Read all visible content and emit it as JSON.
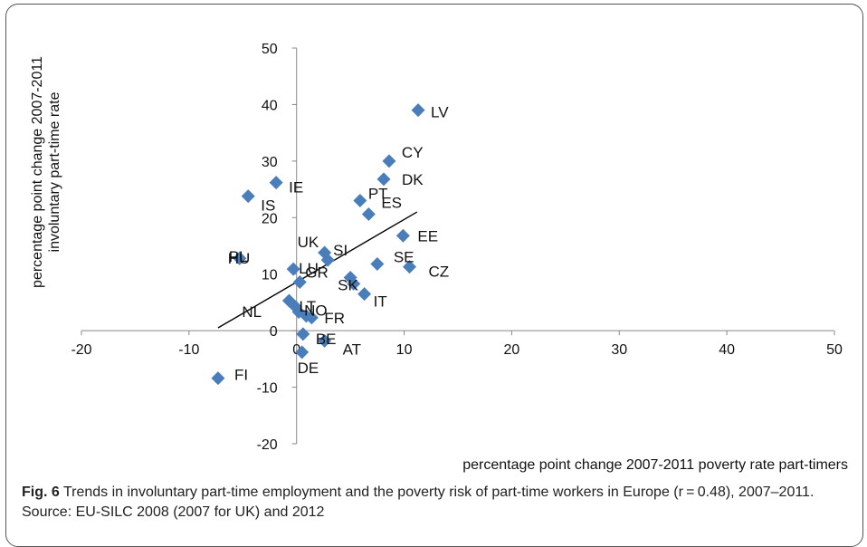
{
  "chart_data": {
    "type": "scatter",
    "xlabel": "percentage point change 2007-2011 poverty rate part-timers",
    "ylabel_lines": [
      "percentage point change 2007-2011",
      "involuntary part-time rate"
    ],
    "xlim": [
      -20,
      50
    ],
    "ylim": [
      -20,
      50
    ],
    "x_ticks": [
      "-20",
      "-10",
      "0",
      "10",
      "20",
      "30",
      "40",
      "50"
    ],
    "y_ticks": [
      "50",
      "40",
      "30",
      "20",
      "10",
      "0",
      "-10",
      "-20"
    ],
    "grid": false,
    "marker_color": "#4a7ebb",
    "trendline": {
      "x": [
        -7.3,
        11.2
      ],
      "y": [
        0.5,
        21
      ]
    },
    "points": [
      {
        "label": "LV",
        "x": 11.3,
        "y": 39.0
      },
      {
        "label": "CY",
        "x": 8.6,
        "y": 30.0
      },
      {
        "label": "DK",
        "x": 8.1,
        "y": 26.8
      },
      {
        "label": "IE",
        "x": -1.9,
        "y": 26.2
      },
      {
        "label": "IS",
        "x": -4.5,
        "y": 23.8
      },
      {
        "label": "PT",
        "x": 5.9,
        "y": 23.0
      },
      {
        "label": "ES",
        "x": 6.7,
        "y": 20.6
      },
      {
        "label": "EE",
        "x": 9.9,
        "y": 16.8
      },
      {
        "label": "UK",
        "x": 2.6,
        "y": 13.8
      },
      {
        "label": "SI",
        "x": 2.9,
        "y": 12.5
      },
      {
        "label": "PL",
        "x": -5.3,
        "y": 12.8
      },
      {
        "label": "HU",
        "x": -5.3,
        "y": 12.8
      },
      {
        "label": "SE",
        "x": 7.5,
        "y": 11.8
      },
      {
        "label": "CZ",
        "x": 10.5,
        "y": 11.3
      },
      {
        "label": "LU",
        "x": -0.3,
        "y": 10.9
      },
      {
        "label": "GR",
        "x": 0.3,
        "y": 8.6
      },
      {
        "label": "SK",
        "x": 5.0,
        "y": 9.4
      },
      {
        "label": "SK",
        "x": 5.3,
        "y": 8.3
      },
      {
        "label": "IT",
        "x": 6.3,
        "y": 6.5
      },
      {
        "label": "NL",
        "x": -0.7,
        "y": 5.3
      },
      {
        "label": "LT",
        "x": -0.1,
        "y": 4.2
      },
      {
        "label": "NO",
        "x": 0.2,
        "y": 3.3
      },
      {
        "label": "FR",
        "x": 0.9,
        "y": 2.6
      },
      {
        "label": "FR",
        "x": 1.4,
        "y": 2.3
      },
      {
        "label": "BE",
        "x": 0.6,
        "y": -0.6
      },
      {
        "label": "AT",
        "x": 2.6,
        "y": -1.8
      },
      {
        "label": "DE",
        "x": 0.5,
        "y": -3.8
      },
      {
        "label": "FI",
        "x": -7.3,
        "y": -8.4
      }
    ]
  },
  "caption": {
    "fig_label": "Fig. 6",
    "text": " Trends in involuntary part-time employment and the poverty risk of part-time workers in Europe (r = 0.48), 2007–2011. Source: EU-SILC 2008 (2007 for UK) and 2012"
  }
}
